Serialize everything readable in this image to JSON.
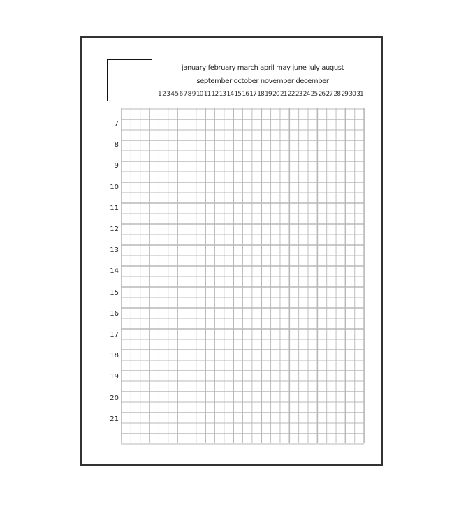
{
  "header": {
    "months_line1": "january february march april may june july august",
    "months_line2": "september october november december",
    "days": [
      "1",
      "2",
      "3",
      "4",
      "5",
      "6",
      "7",
      "8",
      "9",
      "10",
      "11",
      "12",
      "13",
      "14",
      "15",
      "16",
      "17",
      "18",
      "19",
      "20",
      "21",
      "22",
      "23",
      "24",
      "25",
      "26",
      "27",
      "28",
      "29",
      "30",
      "31"
    ]
  },
  "hours": [
    "7",
    "8",
    "9",
    "10",
    "11",
    "12",
    "13",
    "14",
    "15",
    "16",
    "17",
    "18",
    "19",
    "20",
    "21"
  ],
  "grid_color": "#b8b8b8"
}
